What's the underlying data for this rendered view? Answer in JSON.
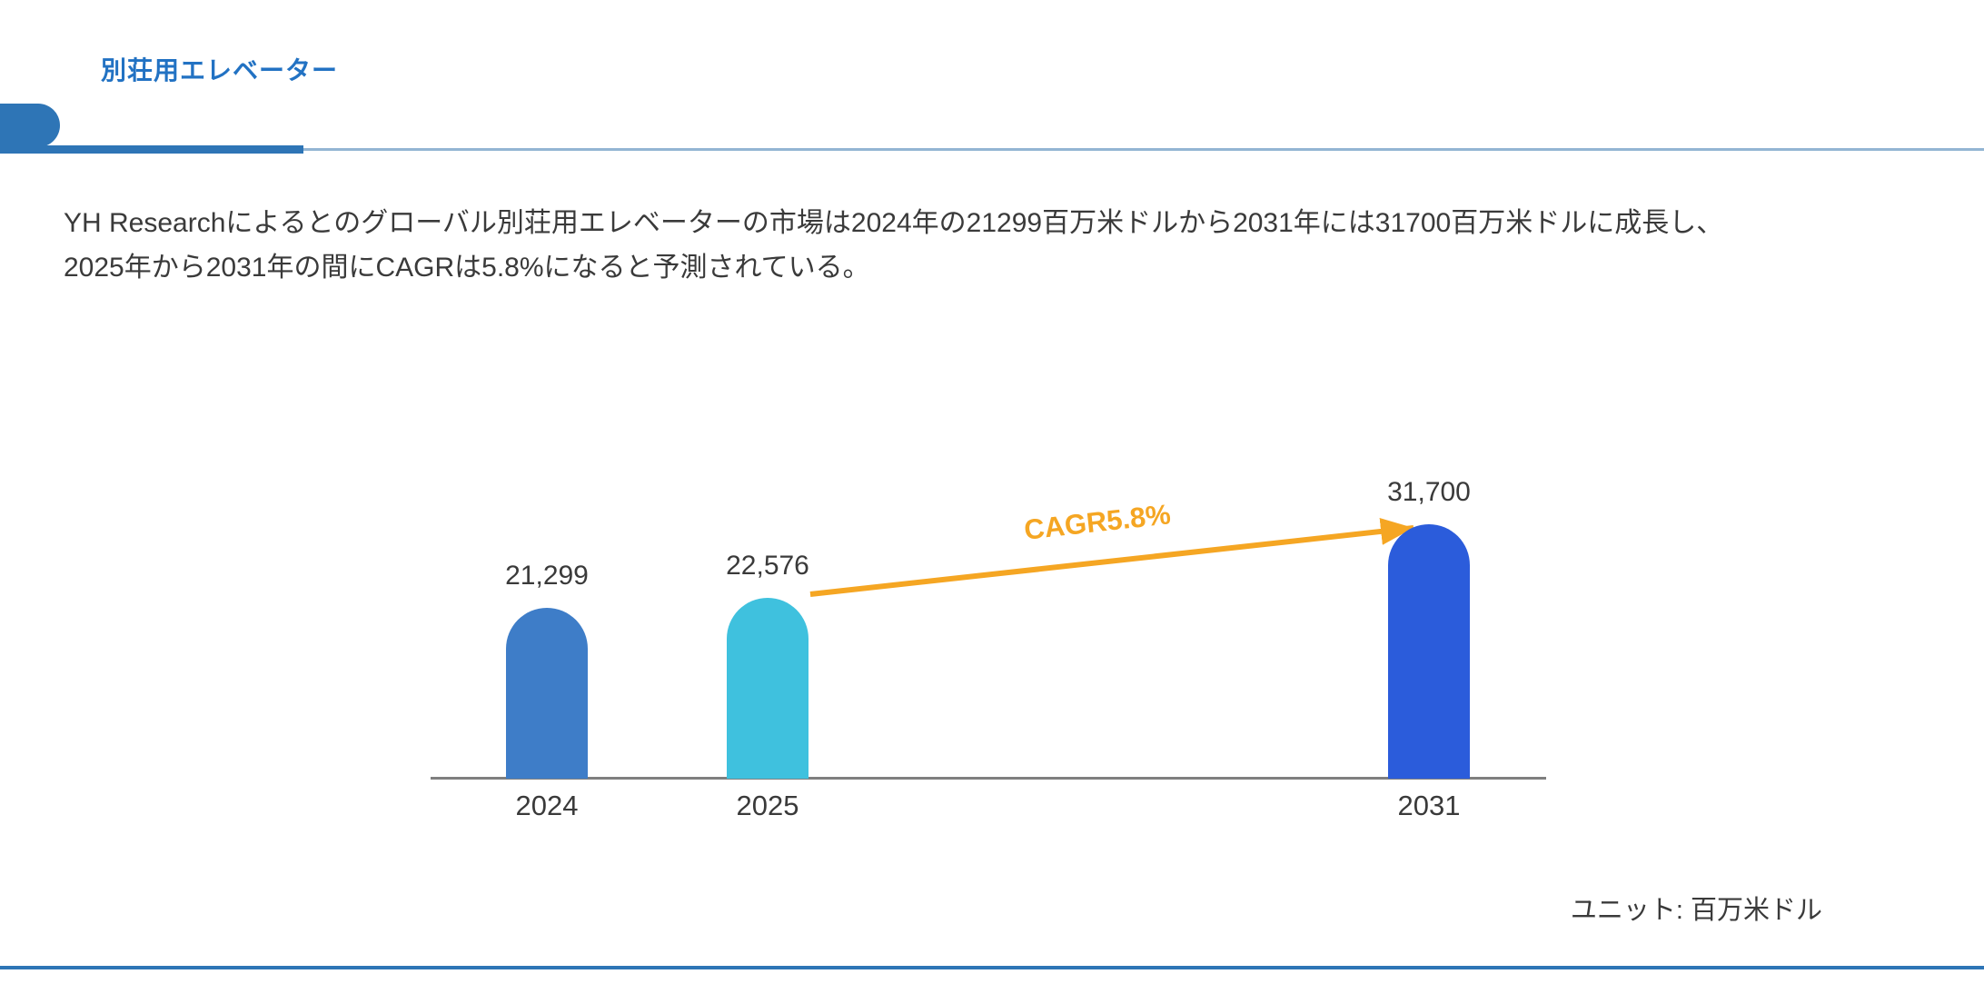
{
  "page": {
    "title": "別荘用エレベーター",
    "description": "YH Researchによるとのグローバル別荘用エレベーターの市場は2024年の21299百万米ドルから2031年には31700百万米ドルに成長し、2025年から2031年の間にCAGRは5.8%になると予測されている。",
    "unit_note": "ユニット: 百万米ドル"
  },
  "chart_data": {
    "type": "bar",
    "categories": [
      "2024",
      "2025",
      "2031"
    ],
    "values": [
      21299,
      22576,
      31700
    ],
    "value_labels": [
      "21,299",
      "22,576",
      "31,700"
    ],
    "annotation": "CAGR5.8%",
    "title": "",
    "xlabel": "",
    "ylabel": "",
    "ylim": [
      0,
      31700
    ],
    "unit": "百万米ドル",
    "legend": false,
    "grid": false,
    "bar_colors": [
      "#3E7DC8",
      "#3FC1DE",
      "#2B5CDB"
    ],
    "arrow_color": "#F5A623"
  },
  "colors": {
    "accent_blue": "#2E75B6",
    "title_blue": "#2272C3",
    "divider_light": "#93B5D3",
    "axis_gray": "#7F7F7F",
    "text_dark": "#3A3A3A",
    "orange": "#F5A623"
  }
}
